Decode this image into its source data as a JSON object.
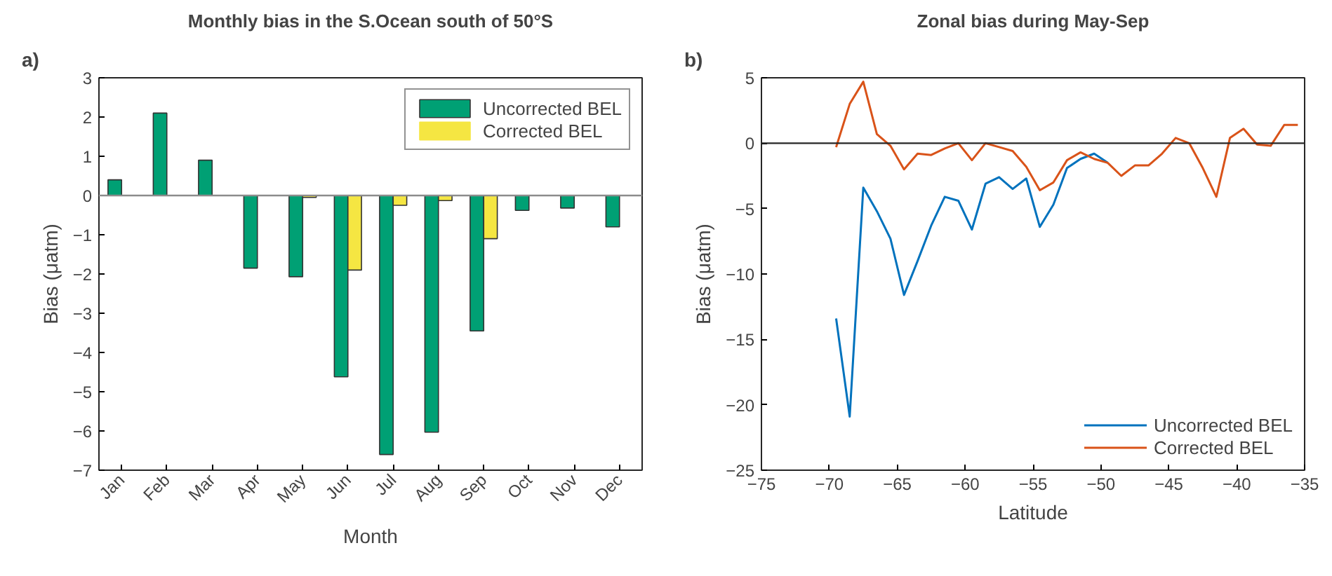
{
  "chart_data": [
    {
      "type": "bar",
      "title": "Monthly bias in the S.Ocean south of 50°S",
      "xlabel": "Month",
      "ylabel": "Bias (μatm)",
      "annotations": [
        "a)"
      ],
      "categories": [
        "Jan",
        "Feb",
        "Mar",
        "Apr",
        "May",
        "Jun",
        "Jul",
        "Aug",
        "Sep",
        "Oct",
        "Nov",
        "Dec"
      ],
      "series": [
        {
          "name": "Uncorrected BEL",
          "color": "#00a074",
          "values": [
            0.4,
            2.1,
            0.9,
            -1.85,
            -2.07,
            -4.62,
            -6.6,
            -6.03,
            -3.45,
            -0.38,
            -0.32,
            -0.8
          ]
        },
        {
          "name": "Corrected BEL",
          "color": "#f5e642",
          "values": [
            0,
            0,
            0,
            0,
            -0.05,
            -1.9,
            -0.25,
            -0.13,
            -1.1,
            0,
            0,
            0
          ]
        }
      ],
      "ylim": [
        -7,
        3
      ],
      "yticks": [
        -7,
        -6,
        -5,
        -4,
        -3,
        -2,
        -1,
        0,
        1,
        2,
        3
      ],
      "ref_lines": [
        {
          "axis": "y",
          "value": 0,
          "color": "#8c8c8c"
        }
      ],
      "legend": "top right",
      "grid": false
    },
    {
      "type": "line",
      "title": "Zonal bias during May-Sep",
      "xlabel": "Latitude",
      "ylabel": "Bias (μatm)",
      "annotations": [
        "b)"
      ],
      "series": [
        {
          "name": "Uncorrected BEL",
          "color": "#0072bd",
          "x": [
            -69.5,
            -68.5,
            -67.5,
            -66.5,
            -65.5,
            -64.5,
            -63.5,
            -62.5,
            -61.5,
            -60.5,
            -59.5,
            -58.5,
            -57.5,
            -56.5,
            -55.5,
            -54.5,
            -53.5,
            -52.5,
            -51.5,
            -50.5,
            -49.5
          ],
          "values": [
            -13.4,
            -20.9,
            -3.4,
            -5.2,
            -7.3,
            -11.6,
            -9.0,
            -6.3,
            -4.1,
            -4.4,
            -6.6,
            -3.1,
            -2.6,
            -3.5,
            -2.7,
            -6.4,
            -4.7,
            -1.9,
            -1.2,
            -0.8,
            -1.5
          ]
        },
        {
          "name": "Corrected BEL",
          "color": "#d95319",
          "x": [
            -69.5,
            -68.5,
            -67.5,
            -66.5,
            -65.5,
            -64.5,
            -63.5,
            -62.5,
            -61.5,
            -60.5,
            -59.5,
            -58.5,
            -57.5,
            -56.5,
            -55.5,
            -54.5,
            -53.5,
            -52.5,
            -51.5,
            -50.5,
            -49.5,
            -48.5,
            -47.5,
            -46.5,
            -45.5,
            -44.5,
            -43.5,
            -42.5,
            -41.5,
            -40.5,
            -39.5,
            -38.5,
            -37.5,
            -36.5,
            -35.5
          ],
          "values": [
            -0.3,
            3.0,
            4.7,
            0.7,
            -0.2,
            -2.0,
            -0.8,
            -0.9,
            -0.4,
            0.0,
            -1.3,
            0.0,
            -0.3,
            -0.6,
            -1.8,
            -3.6,
            -3.0,
            -1.3,
            -0.7,
            -1.2,
            -1.5,
            -2.5,
            -1.7,
            -1.7,
            -0.8,
            0.4,
            0.0,
            -1.9,
            -4.1,
            0.4,
            1.1,
            -0.1,
            -0.2,
            1.4,
            1.4
          ]
        }
      ],
      "xlim": [
        -75,
        -35
      ],
      "xticks": [
        -75,
        -70,
        -65,
        -60,
        -55,
        -50,
        -45,
        -40,
        -35
      ],
      "ylim": [
        -25,
        5
      ],
      "yticks": [
        -25,
        -20,
        -15,
        -10,
        -5,
        0,
        5
      ],
      "ref_lines": [
        {
          "axis": "y",
          "value": 0,
          "color": "#262626"
        }
      ],
      "legend": "bottom right",
      "grid": false
    }
  ]
}
